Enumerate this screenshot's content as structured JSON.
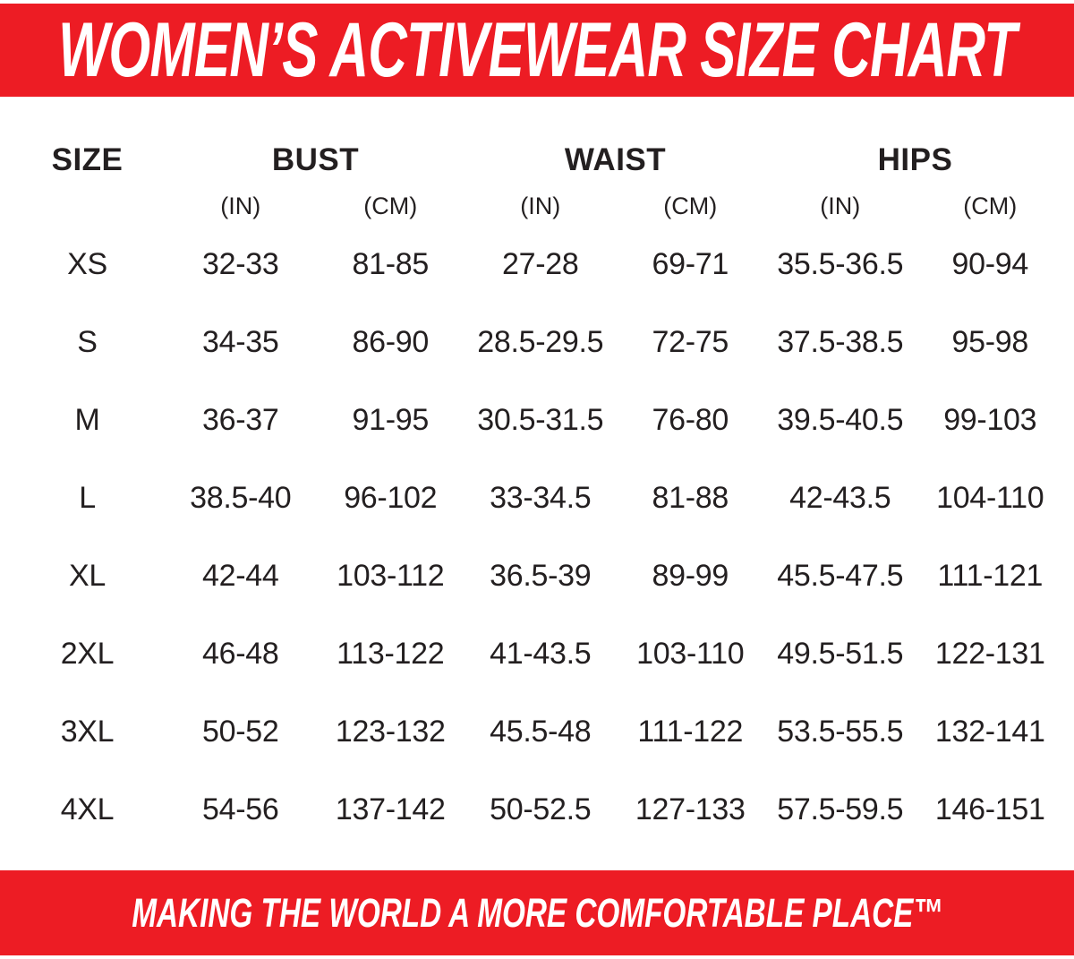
{
  "colors": {
    "banner_red": "#ED1C24",
    "text_dark": "#231F20",
    "banner_text": "#FFFFFF"
  },
  "header": {
    "title": "WOMEN’S ACTIVEWEAR SIZE CHART"
  },
  "footer": {
    "tagline": "MAKING THE WORLD A MORE COMFORTABLE PLACE™"
  },
  "table": {
    "size_header": "SIZE",
    "groups": [
      {
        "label": "BUST"
      },
      {
        "label": "WAIST"
      },
      {
        "label": "HIPS"
      }
    ],
    "units": [
      "(IN)",
      "(CM)",
      "(IN)",
      "(CM)",
      "(IN)",
      "(CM)"
    ],
    "rows": [
      {
        "size": "XS",
        "values": [
          "32-33",
          "81-85",
          "27-28",
          "69-71",
          "35.5-36.5",
          "90-94"
        ]
      },
      {
        "size": "S",
        "values": [
          "34-35",
          "86-90",
          "28.5-29.5",
          "72-75",
          "37.5-38.5",
          "95-98"
        ]
      },
      {
        "size": "M",
        "values": [
          "36-37",
          "91-95",
          "30.5-31.5",
          "76-80",
          "39.5-40.5",
          "99-103"
        ]
      },
      {
        "size": "L",
        "values": [
          "38.5-40",
          "96-102",
          "33-34.5",
          "81-88",
          "42-43.5",
          "104-110"
        ]
      },
      {
        "size": "XL",
        "values": [
          "42-44",
          "103-112",
          "36.5-39",
          "89-99",
          "45.5-47.5",
          "111-121"
        ]
      },
      {
        "size": "2XL",
        "values": [
          "46-48",
          "113-122",
          "41-43.5",
          "103-110",
          "49.5-51.5",
          "122-131"
        ]
      },
      {
        "size": "3XL",
        "values": [
          "50-52",
          "123-132",
          "45.5-48",
          "111-122",
          "53.5-55.5",
          "132-141"
        ]
      },
      {
        "size": "4XL",
        "values": [
          "54-56",
          "137-142",
          "50-52.5",
          "127-133",
          "57.5-59.5",
          "146-151"
        ]
      }
    ]
  },
  "chart_data": {
    "type": "table",
    "title": "WOMEN’S ACTIVEWEAR SIZE CHART",
    "columns": [
      "SIZE",
      "BUST (IN)",
      "BUST (CM)",
      "WAIST (IN)",
      "WAIST (CM)",
      "HIPS (IN)",
      "HIPS (CM)"
    ],
    "rows": [
      [
        "XS",
        "32-33",
        "81-85",
        "27-28",
        "69-71",
        "35.5-36.5",
        "90-94"
      ],
      [
        "S",
        "34-35",
        "86-90",
        "28.5-29.5",
        "72-75",
        "37.5-38.5",
        "95-98"
      ],
      [
        "M",
        "36-37",
        "91-95",
        "30.5-31.5",
        "76-80",
        "39.5-40.5",
        "99-103"
      ],
      [
        "L",
        "38.5-40",
        "96-102",
        "33-34.5",
        "81-88",
        "42-43.5",
        "104-110"
      ],
      [
        "XL",
        "42-44",
        "103-112",
        "36.5-39",
        "89-99",
        "45.5-47.5",
        "111-121"
      ],
      [
        "2XL",
        "46-48",
        "113-122",
        "41-43.5",
        "103-110",
        "49.5-51.5",
        "122-131"
      ],
      [
        "3XL",
        "50-52",
        "123-132",
        "45.5-48",
        "111-122",
        "53.5-55.5",
        "132-141"
      ],
      [
        "4XL",
        "54-56",
        "137-142",
        "50-52.5",
        "127-133",
        "57.5-59.5",
        "146-151"
      ]
    ],
    "footnote": "MAKING THE WORLD A MORE COMFORTABLE PLACE™"
  }
}
